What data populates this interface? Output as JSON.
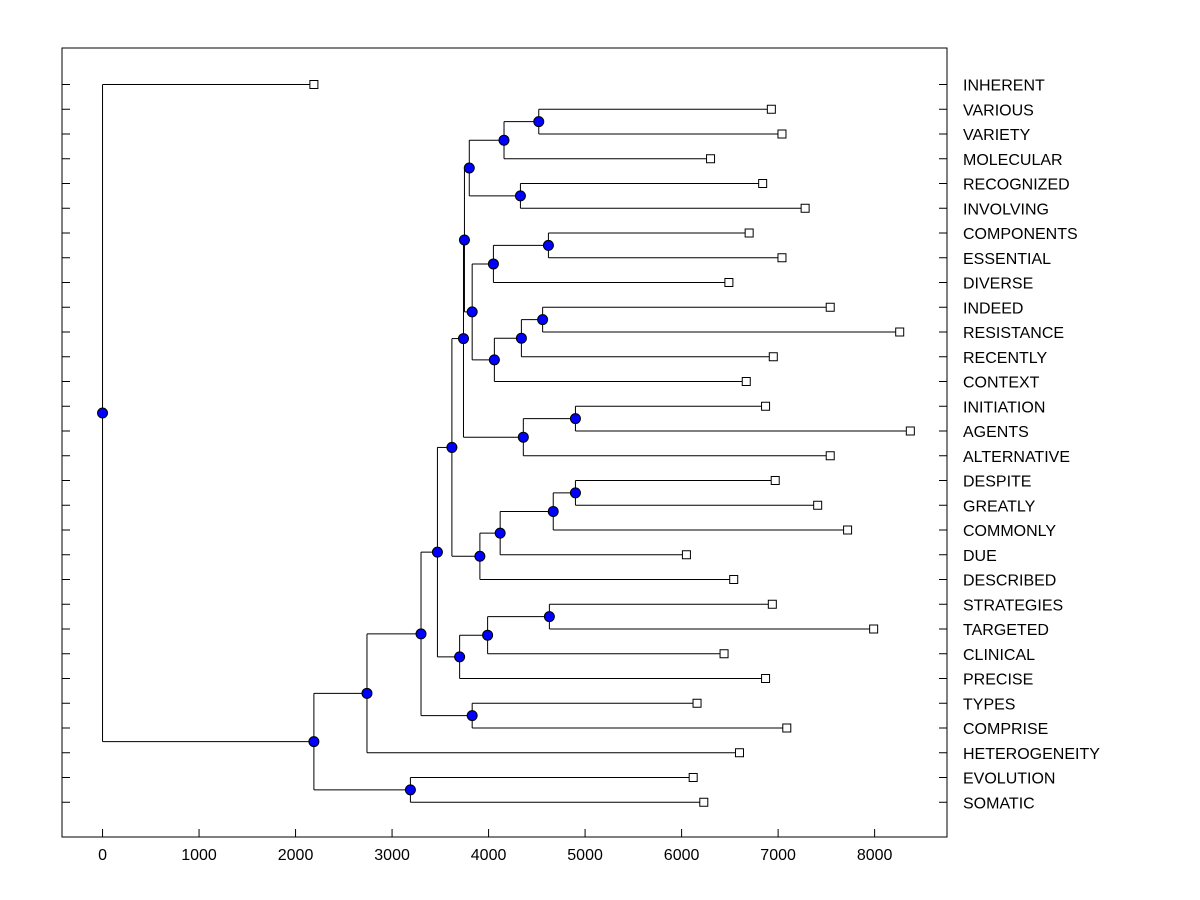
{
  "colors": {
    "node_fill": "#0000ff",
    "line": "#000000",
    "leaf_marker_fill": "#ffffff",
    "background": "#ffffff"
  },
  "chart_data": {
    "type": "dendrogram",
    "title": "",
    "xlabel": "",
    "ylabel": "",
    "xlim": [
      -420,
      8750
    ],
    "xticks": [
      0,
      1000,
      2000,
      3000,
      4000,
      5000,
      6000,
      7000,
      8000
    ],
    "xtick_labels": [
      "0",
      "1000",
      "2000",
      "3000",
      "4000",
      "5000",
      "6000",
      "7000",
      "8000"
    ],
    "grid": false,
    "leaves": [
      {
        "label": "INHERENT",
        "value": 2190
      },
      {
        "label": "VARIOUS",
        "value": 6930
      },
      {
        "label": "VARIETY",
        "value": 7040
      },
      {
        "label": "MOLECULAR",
        "value": 6300
      },
      {
        "label": "RECOGNIZED",
        "value": 6840
      },
      {
        "label": "INVOLVING",
        "value": 7280
      },
      {
        "label": "COMPONENTS",
        "value": 6700
      },
      {
        "label": "ESSENTIAL",
        "value": 7040
      },
      {
        "label": "DIVERSE",
        "value": 6490
      },
      {
        "label": "INDEED",
        "value": 7540
      },
      {
        "label": "RESISTANCE",
        "value": 8260
      },
      {
        "label": "RECENTLY",
        "value": 6950
      },
      {
        "label": "CONTEXT",
        "value": 6670
      },
      {
        "label": "INITIATION",
        "value": 6870
      },
      {
        "label": "AGENTS",
        "value": 8370
      },
      {
        "label": "ALTERNATIVE",
        "value": 7540
      },
      {
        "label": "DESPITE",
        "value": 6970
      },
      {
        "label": "GREATLY",
        "value": 7410
      },
      {
        "label": "COMMONLY",
        "value": 7720
      },
      {
        "label": "DUE",
        "value": 6050
      },
      {
        "label": "DESCRIBED",
        "value": 6540
      },
      {
        "label": "STRATEGIES",
        "value": 6940
      },
      {
        "label": "TARGETED",
        "value": 7990
      },
      {
        "label": "CLINICAL",
        "value": 6440
      },
      {
        "label": "PRECISE",
        "value": 6870
      },
      {
        "label": "TYPES",
        "value": 6160
      },
      {
        "label": "COMPRISE",
        "value": 7090
      },
      {
        "label": "HETEROGENEITY",
        "value": 6600
      },
      {
        "label": "EVOLUTION",
        "value": 6120
      },
      {
        "label": "SOMATIC",
        "value": 6230
      }
    ],
    "nodes": [
      {
        "id": "n_various_variety",
        "value": 4520,
        "children": [
          "VARIOUS",
          "VARIETY"
        ]
      },
      {
        "id": "n_vv_molecular",
        "value": 4160,
        "children": [
          "n_various_variety",
          "MOLECULAR"
        ]
      },
      {
        "id": "n_recog_involv",
        "value": 4330,
        "children": [
          "RECOGNIZED",
          "INVOLVING"
        ]
      },
      {
        "id": "n_top_group",
        "value": 3800,
        "children": [
          "n_vv_molecular",
          "n_recog_involv"
        ]
      },
      {
        "id": "n_comp_ess",
        "value": 4620,
        "children": [
          "COMPONENTS",
          "ESSENTIAL"
        ]
      },
      {
        "id": "n_ce_diverse",
        "value": 4050,
        "children": [
          "n_comp_ess",
          "DIVERSE"
        ]
      },
      {
        "id": "n_indeed_resist",
        "value": 4560,
        "children": [
          "INDEED",
          "RESISTANCE"
        ]
      },
      {
        "id": "n_ir_recently",
        "value": 4340,
        "children": [
          "n_indeed_resist",
          "RECENTLY"
        ]
      },
      {
        "id": "n_irr_context",
        "value": 4060,
        "children": [
          "n_ir_recently",
          "CONTEXT"
        ]
      },
      {
        "id": "n_diverse_context",
        "value": 3830,
        "children": [
          "n_ce_diverse",
          "n_irr_context"
        ]
      },
      {
        "id": "n_upper_mid",
        "value": 3750,
        "children": [
          "n_top_group",
          "n_diverse_context"
        ]
      },
      {
        "id": "n_init_agents",
        "value": 4900,
        "children": [
          "INITIATION",
          "AGENTS"
        ]
      },
      {
        "id": "n_ia_altern",
        "value": 4360,
        "children": [
          "n_init_agents",
          "ALTERNATIVE"
        ]
      },
      {
        "id": "n_upper_block",
        "value": 3740,
        "children": [
          "n_upper_mid",
          "n_ia_altern"
        ]
      },
      {
        "id": "n_despite_greatly",
        "value": 4900,
        "children": [
          "DESPITE",
          "GREATLY"
        ]
      },
      {
        "id": "n_dg_commonly",
        "value": 4670,
        "children": [
          "n_despite_greatly",
          "COMMONLY"
        ]
      },
      {
        "id": "n_dgc_due",
        "value": 4120,
        "children": [
          "n_dg_commonly",
          "DUE"
        ]
      },
      {
        "id": "n_dgcd_described",
        "value": 3910,
        "children": [
          "n_dgc_due",
          "DESCRIBED"
        ]
      },
      {
        "id": "n_upper_plus_described",
        "value": 3620,
        "children": [
          "n_upper_block",
          "n_dgcd_described"
        ]
      },
      {
        "id": "n_strat_target",
        "value": 4630,
        "children": [
          "STRATEGIES",
          "TARGETED"
        ]
      },
      {
        "id": "n_st_clinical",
        "value": 3990,
        "children": [
          "n_strat_target",
          "CLINICAL"
        ]
      },
      {
        "id": "n_stc_precise",
        "value": 3700,
        "children": [
          "n_st_clinical",
          "PRECISE"
        ]
      },
      {
        "id": "n_mid_merge",
        "value": 3470,
        "children": [
          "n_upper_plus_described",
          "n_stc_precise"
        ]
      },
      {
        "id": "n_types_comprise",
        "value": 3830,
        "children": [
          "TYPES",
          "COMPRISE"
        ]
      },
      {
        "id": "n_mid_types",
        "value": 3300,
        "children": [
          "n_mid_merge",
          "n_types_comprise"
        ]
      },
      {
        "id": "n_plus_hetero",
        "value": 2740,
        "children": [
          "n_mid_types",
          "HETEROGENEITY"
        ]
      },
      {
        "id": "n_evol_somatic",
        "value": 3190,
        "children": [
          "EVOLUTION",
          "SOMATIC"
        ]
      },
      {
        "id": "n_lower_root",
        "value": 2190,
        "children": [
          "n_plus_hetero",
          "n_evol_somatic"
        ]
      },
      {
        "id": "n_root",
        "value": 0,
        "children": [
          "INHERENT",
          "n_lower_root"
        ]
      }
    ]
  }
}
